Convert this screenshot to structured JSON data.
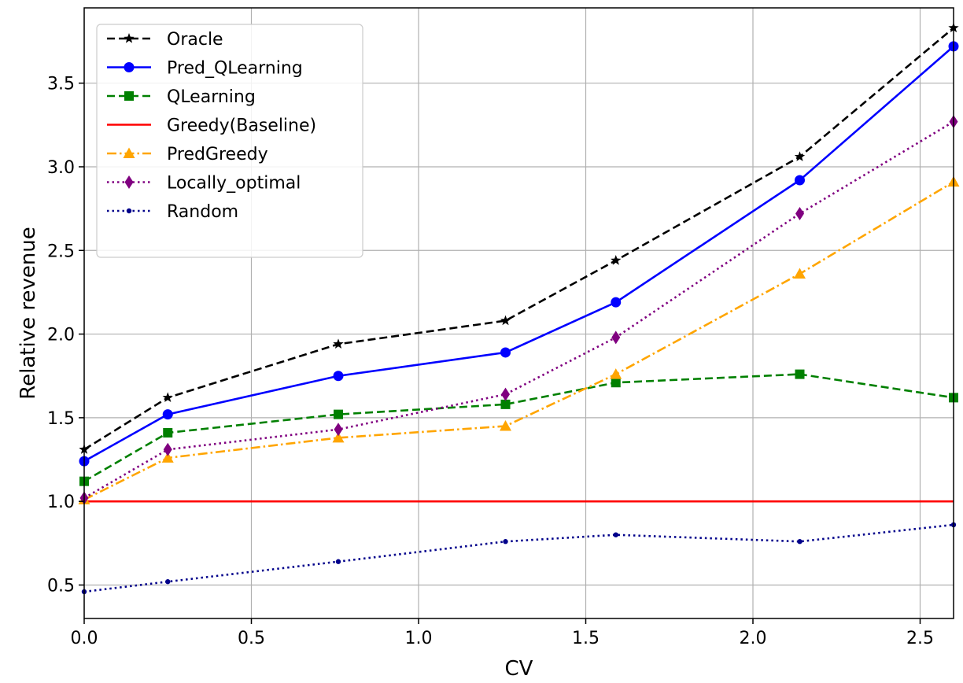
{
  "chart_data": {
    "type": "line",
    "title": "",
    "xlabel": "CV",
    "ylabel": "Relative revenue",
    "xlim": [
      0.0,
      2.6
    ],
    "ylim": [
      0.3,
      3.95
    ],
    "x_ticks": [
      0.0,
      0.5,
      1.0,
      1.5,
      2.0,
      2.5
    ],
    "x_tick_labels": [
      "0.0",
      "0.5",
      "1.0",
      "1.5",
      "2.0",
      "2.5"
    ],
    "y_ticks": [
      0.5,
      1.0,
      1.5,
      2.0,
      2.5,
      3.0,
      3.5
    ],
    "y_tick_labels": [
      "0.5",
      "1.0",
      "1.5",
      "2.0",
      "2.5",
      "3.0",
      "3.5"
    ],
    "grid": true,
    "legend_position": "top-left",
    "x": [
      0.0,
      0.25,
      0.76,
      1.26,
      1.59,
      2.14,
      2.6
    ],
    "series": [
      {
        "name": "Oracle",
        "color": "#000000",
        "dash": "dashed",
        "marker": "star",
        "values": [
          1.31,
          1.62,
          1.94,
          2.08,
          2.44,
          3.06,
          3.83
        ]
      },
      {
        "name": "Pred_QLearning",
        "color": "#0000ff",
        "dash": "solid",
        "marker": "circle",
        "values": [
          1.24,
          1.52,
          1.75,
          1.89,
          2.19,
          2.92,
          3.72
        ]
      },
      {
        "name": "QLearning",
        "color": "#008000",
        "dash": "dashed",
        "marker": "square",
        "values": [
          1.12,
          1.41,
          1.52,
          1.58,
          1.71,
          1.76,
          1.62
        ]
      },
      {
        "name": "Greedy(Baseline)",
        "color": "#ff0000",
        "dash": "solid",
        "marker": "none",
        "values": [
          1.0,
          1.0,
          1.0,
          1.0,
          1.0,
          1.0,
          1.0
        ]
      },
      {
        "name": "PredGreedy",
        "color": "#ffa500",
        "dash": "dashdot",
        "marker": "triangle",
        "values": [
          1.01,
          1.26,
          1.38,
          1.45,
          1.76,
          2.36,
          2.91
        ]
      },
      {
        "name": "Locally_optimal",
        "color": "#800080",
        "dash": "dotted",
        "marker": "diamond",
        "values": [
          1.02,
          1.31,
          1.43,
          1.64,
          1.98,
          2.72,
          3.27
        ]
      },
      {
        "name": "Random",
        "color": "#00008b",
        "dash": "dotted",
        "marker": "dot",
        "values": [
          0.46,
          0.52,
          0.64,
          0.76,
          0.8,
          0.76,
          0.86
        ]
      }
    ]
  }
}
